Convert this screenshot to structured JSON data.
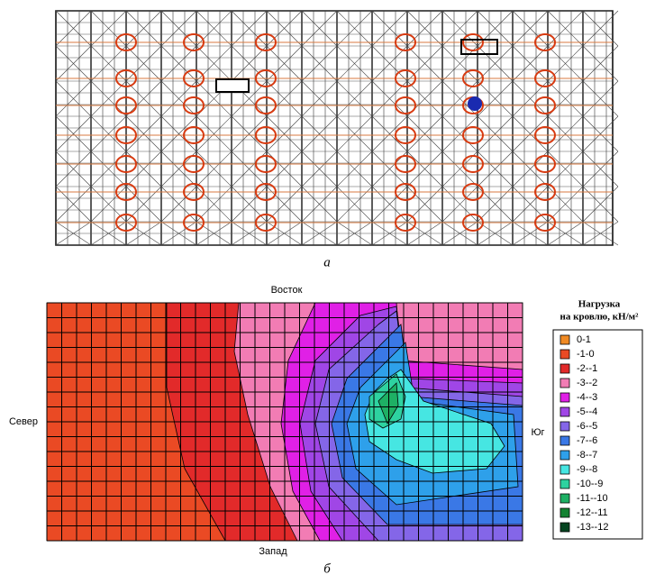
{
  "figure_a": {
    "caption": "а"
  },
  "figure_b": {
    "caption": "б",
    "labels": {
      "top": "Восток",
      "left": "Север",
      "right": "Юг",
      "bottom": "Запад"
    },
    "legend": {
      "title": [
        "Нагрузка",
        "на кровлю, кН/м²"
      ],
      "items": [
        {
          "label": "0-1",
          "color": "#f08a24"
        },
        {
          "label": "-1-0",
          "color": "#ea4a24"
        },
        {
          "label": "-2--1",
          "color": "#e22a2a"
        },
        {
          "label": "-3--2",
          "color": "#f27cb4"
        },
        {
          "label": "-4--3",
          "color": "#e020e6"
        },
        {
          "label": "-5--4",
          "color": "#a046e6"
        },
        {
          "label": "-6--5",
          "color": "#8466e8"
        },
        {
          "label": "-7--6",
          "color": "#3a78e6"
        },
        {
          "label": "-8--7",
          "color": "#2ea0ea"
        },
        {
          "label": "-9--8",
          "color": "#46e6e2"
        },
        {
          "label": "-10--9",
          "color": "#2ed2a0"
        },
        {
          "label": "-11--10",
          "color": "#1eb064"
        },
        {
          "label": "-12--11",
          "color": "#148232"
        },
        {
          "label": "-13--12",
          "color": "#064420"
        }
      ]
    }
  }
}
